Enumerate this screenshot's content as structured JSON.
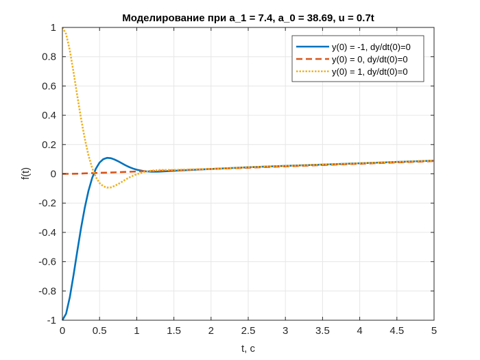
{
  "chart_data": {
    "type": "line",
    "title": "Моделирование при a_1 = 7.4, a_0 = 38.69, u = 0.7t",
    "xlabel": "t, c",
    "ylabel": "f(t)",
    "xlim": [
      0,
      5
    ],
    "ylim": [
      -1,
      1
    ],
    "xticks": [
      "0",
      "0.5",
      "1",
      "1.5",
      "2",
      "2.5",
      "3",
      "3.5",
      "4",
      "4.5",
      "5"
    ],
    "yticks": [
      "-1",
      "-0.8",
      "-0.6",
      "-0.4",
      "-0.2",
      "0",
      "0.2",
      "0.4",
      "0.6",
      "0.8",
      "1"
    ],
    "grid": true,
    "legend_position": "top-right",
    "series": [
      {
        "name": "y(0) = -1, dy/dt(0)=0",
        "color": "#0072BD",
        "dash": "solid",
        "x": [
          0,
          0.05,
          0.1,
          0.15,
          0.2,
          0.25,
          0.3,
          0.35,
          0.4,
          0.45,
          0.5,
          0.55,
          0.6,
          0.65,
          0.7,
          0.75,
          0.8,
          0.85,
          0.9,
          0.95,
          1.0,
          1.1,
          1.2,
          1.3,
          1.5,
          2,
          2.5,
          3,
          3.5,
          4,
          4.5,
          5
        ],
        "y": [
          -1.0,
          -0.955,
          -0.842,
          -0.691,
          -0.529,
          -0.373,
          -0.234,
          -0.118,
          -0.029,
          0.035,
          0.077,
          0.1,
          0.109,
          0.107,
          0.098,
          0.086,
          0.072,
          0.058,
          0.046,
          0.036,
          0.028,
          0.018,
          0.014,
          0.015,
          0.021,
          0.033,
          0.045,
          0.054,
          0.063,
          0.072,
          0.081,
          0.09
        ]
      },
      {
        "name": "y(0) = 0, dy/dt(0)=0",
        "color": "#D95319",
        "dash": "dashed",
        "x": [
          0,
          0.1,
          0.2,
          0.3,
          0.4,
          0.5,
          0.6,
          0.7,
          0.8,
          0.9,
          1.0,
          1.2,
          1.5,
          2,
          2.5,
          3,
          3.5,
          4,
          4.5,
          5
        ],
        "y": [
          0.0,
          0.0,
          0.001,
          0.003,
          0.005,
          0.007,
          0.008,
          0.01,
          0.012,
          0.014,
          0.016,
          0.019,
          0.024,
          0.033,
          0.042,
          0.051,
          0.06,
          0.069,
          0.078,
          0.087
        ]
      },
      {
        "name": "y(0) = 1, dy/dt(0)=0",
        "color": "#EDB120",
        "dash": "dotted",
        "x": [
          0,
          0.05,
          0.1,
          0.15,
          0.2,
          0.25,
          0.3,
          0.35,
          0.4,
          0.45,
          0.5,
          0.55,
          0.6,
          0.65,
          0.7,
          0.75,
          0.8,
          0.85,
          0.9,
          0.95,
          1.0,
          1.1,
          1.2,
          1.3,
          1.5,
          2,
          2.5,
          3,
          3.5,
          4,
          4.5,
          5
        ],
        "y": [
          1.0,
          0.955,
          0.843,
          0.694,
          0.534,
          0.38,
          0.243,
          0.128,
          0.04,
          -0.022,
          -0.063,
          -0.085,
          -0.094,
          -0.093,
          -0.083,
          -0.07,
          -0.055,
          -0.039,
          -0.025,
          -0.013,
          -0.003,
          0.013,
          0.022,
          0.026,
          0.027,
          0.033,
          0.045,
          0.054,
          0.063,
          0.072,
          0.081,
          0.09
        ]
      }
    ]
  }
}
